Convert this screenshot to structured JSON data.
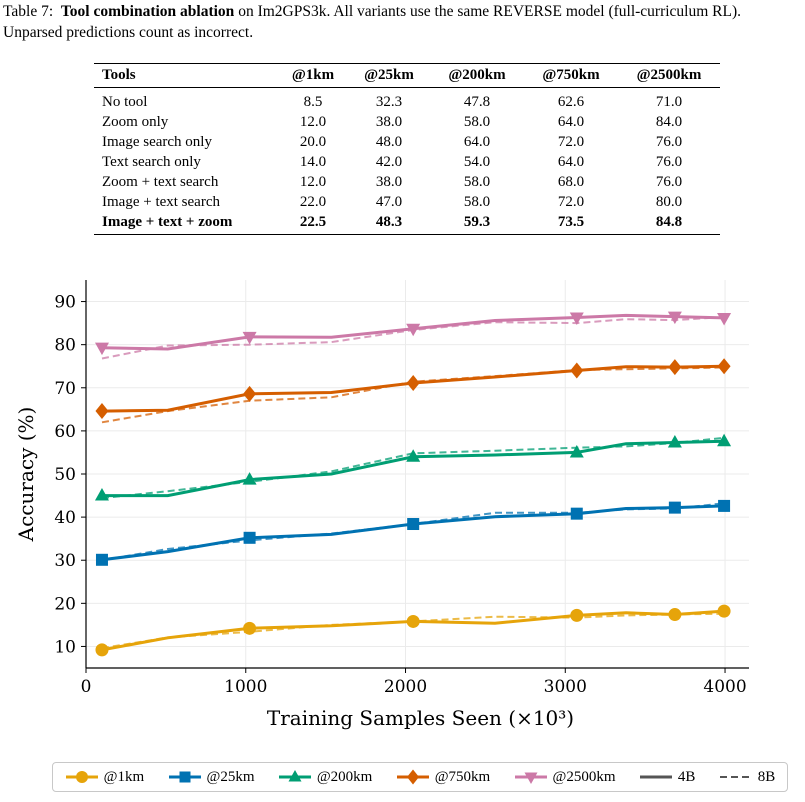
{
  "caption": {
    "label": "Table 7:",
    "bold": "Tool combination ablation",
    "rest": " on Im2GPS3k. All variants use the same REVERSE model (full-curriculum RL). Unparsed predictions count as incorrect."
  },
  "table": {
    "headers": [
      "Tools",
      "@1km",
      "@25km",
      "@200km",
      "@750km",
      "@2500km"
    ],
    "rows": [
      [
        "No tool",
        "8.5",
        "32.3",
        "47.8",
        "62.6",
        "71.0"
      ],
      [
        "Zoom only",
        "12.0",
        "38.0",
        "58.0",
        "64.0",
        "84.0"
      ],
      [
        "Image search only",
        "20.0",
        "48.0",
        "64.0",
        "72.0",
        "76.0"
      ],
      [
        "Text search only",
        "14.0",
        "42.0",
        "54.0",
        "64.0",
        "76.0"
      ],
      [
        "Zoom + text search",
        "12.0",
        "38.0",
        "58.0",
        "68.0",
        "76.0"
      ],
      [
        "Image + text search",
        "22.0",
        "47.0",
        "58.0",
        "72.0",
        "80.0"
      ],
      [
        "Image + text + zoom",
        "22.5",
        "48.3",
        "59.3",
        "73.5",
        "84.8"
      ]
    ]
  },
  "chart_data": {
    "type": "line",
    "xlabel": "Training Samples Seen (×10³)",
    "ylabel": "Accuracy (%)",
    "xlim": [
      0,
      4150
    ],
    "ylim": [
      5,
      95
    ],
    "xticks": [
      0,
      1000,
      2000,
      3000,
      4000
    ],
    "yticks": [
      10,
      20,
      30,
      40,
      50,
      60,
      70,
      80,
      90
    ],
    "grid": true,
    "legend_position": "bottom",
    "series": [
      {
        "name": "@1km",
        "color": "#E6A40A",
        "marker": "circle",
        "solid_4B": [
          [
            100,
            9.2
          ],
          [
            512,
            12.0
          ],
          [
            1024,
            14.2
          ],
          [
            1536,
            14.8
          ],
          [
            2048,
            15.8
          ],
          [
            2560,
            15.4
          ],
          [
            3072,
            17.2
          ],
          [
            3380,
            17.8
          ],
          [
            3686,
            17.4
          ],
          [
            3994,
            18.2
          ]
        ],
        "dashed_8B": [
          [
            100,
            9.6
          ],
          [
            512,
            12.1
          ],
          [
            1024,
            13.4
          ],
          [
            1536,
            15.0
          ],
          [
            2048,
            15.8
          ],
          [
            2560,
            16.9
          ],
          [
            3072,
            16.7
          ],
          [
            3380,
            17.2
          ],
          [
            3686,
            17.4
          ],
          [
            3994,
            17.6
          ]
        ]
      },
      {
        "name": "@25km",
        "color": "#0072B2",
        "marker": "square",
        "solid_4B": [
          [
            100,
            30.1
          ],
          [
            512,
            32.0
          ],
          [
            1024,
            35.2
          ],
          [
            1536,
            36.0
          ],
          [
            2048,
            38.4
          ],
          [
            2560,
            40.1
          ],
          [
            3072,
            40.8
          ],
          [
            3380,
            42.0
          ],
          [
            3686,
            42.2
          ],
          [
            3994,
            42.6
          ]
        ],
        "dashed_8B": [
          [
            100,
            30.0
          ],
          [
            512,
            32.6
          ],
          [
            1024,
            34.6
          ],
          [
            1536,
            36.2
          ],
          [
            2048,
            38.4
          ],
          [
            2560,
            41.0
          ],
          [
            3072,
            41.0
          ],
          [
            3380,
            41.8
          ],
          [
            3686,
            42.0
          ],
          [
            3994,
            43.2
          ]
        ]
      },
      {
        "name": "@200km",
        "color": "#009E73",
        "marker": "triangle-up",
        "solid_4B": [
          [
            100,
            45.0
          ],
          [
            512,
            45.0
          ],
          [
            1024,
            48.7
          ],
          [
            1536,
            50.0
          ],
          [
            2048,
            54.0
          ],
          [
            2560,
            54.4
          ],
          [
            3072,
            55.0
          ],
          [
            3380,
            57.0
          ],
          [
            3686,
            57.3
          ],
          [
            3994,
            57.6
          ]
        ],
        "dashed_8B": [
          [
            100,
            44.4
          ],
          [
            512,
            46.0
          ],
          [
            1024,
            48.2
          ],
          [
            1536,
            50.6
          ],
          [
            2048,
            54.8
          ],
          [
            2560,
            55.4
          ],
          [
            3072,
            56.1
          ],
          [
            3380,
            56.4
          ],
          [
            3686,
            57.2
          ],
          [
            3994,
            58.4
          ]
        ]
      },
      {
        "name": "@750km",
        "color": "#D55E00",
        "marker": "diamond",
        "solid_4B": [
          [
            100,
            64.6
          ],
          [
            512,
            64.8
          ],
          [
            1024,
            68.6
          ],
          [
            1536,
            68.9
          ],
          [
            2048,
            71.1
          ],
          [
            2560,
            72.5
          ],
          [
            3072,
            74.0
          ],
          [
            3380,
            74.9
          ],
          [
            3686,
            74.8
          ],
          [
            3994,
            75.0
          ]
        ],
        "dashed_8B": [
          [
            100,
            62.0
          ],
          [
            512,
            64.6
          ],
          [
            1024,
            67.0
          ],
          [
            1536,
            67.8
          ],
          [
            2048,
            71.4
          ],
          [
            2560,
            72.7
          ],
          [
            3072,
            74.1
          ],
          [
            3380,
            74.3
          ],
          [
            3686,
            74.5
          ],
          [
            3994,
            74.7
          ]
        ]
      },
      {
        "name": "@2500km",
        "color": "#CC79A7",
        "marker": "triangle-down",
        "solid_4B": [
          [
            100,
            79.3
          ],
          [
            512,
            79.0
          ],
          [
            1024,
            81.8
          ],
          [
            1536,
            81.7
          ],
          [
            2048,
            83.7
          ],
          [
            2560,
            85.6
          ],
          [
            3072,
            86.3
          ],
          [
            3380,
            86.8
          ],
          [
            3686,
            86.5
          ],
          [
            3994,
            86.2
          ]
        ],
        "dashed_8B": [
          [
            100,
            76.8
          ],
          [
            512,
            79.8
          ],
          [
            1024,
            80.0
          ],
          [
            1536,
            80.6
          ],
          [
            2048,
            83.4
          ],
          [
            2560,
            85.2
          ],
          [
            3072,
            85.0
          ],
          [
            3380,
            85.9
          ],
          [
            3686,
            85.7
          ],
          [
            3994,
            86.4
          ]
        ]
      }
    ],
    "legend": [
      "@1km",
      "@25km",
      "@200km",
      "@750km",
      "@2500km",
      "4B",
      "8B"
    ]
  }
}
